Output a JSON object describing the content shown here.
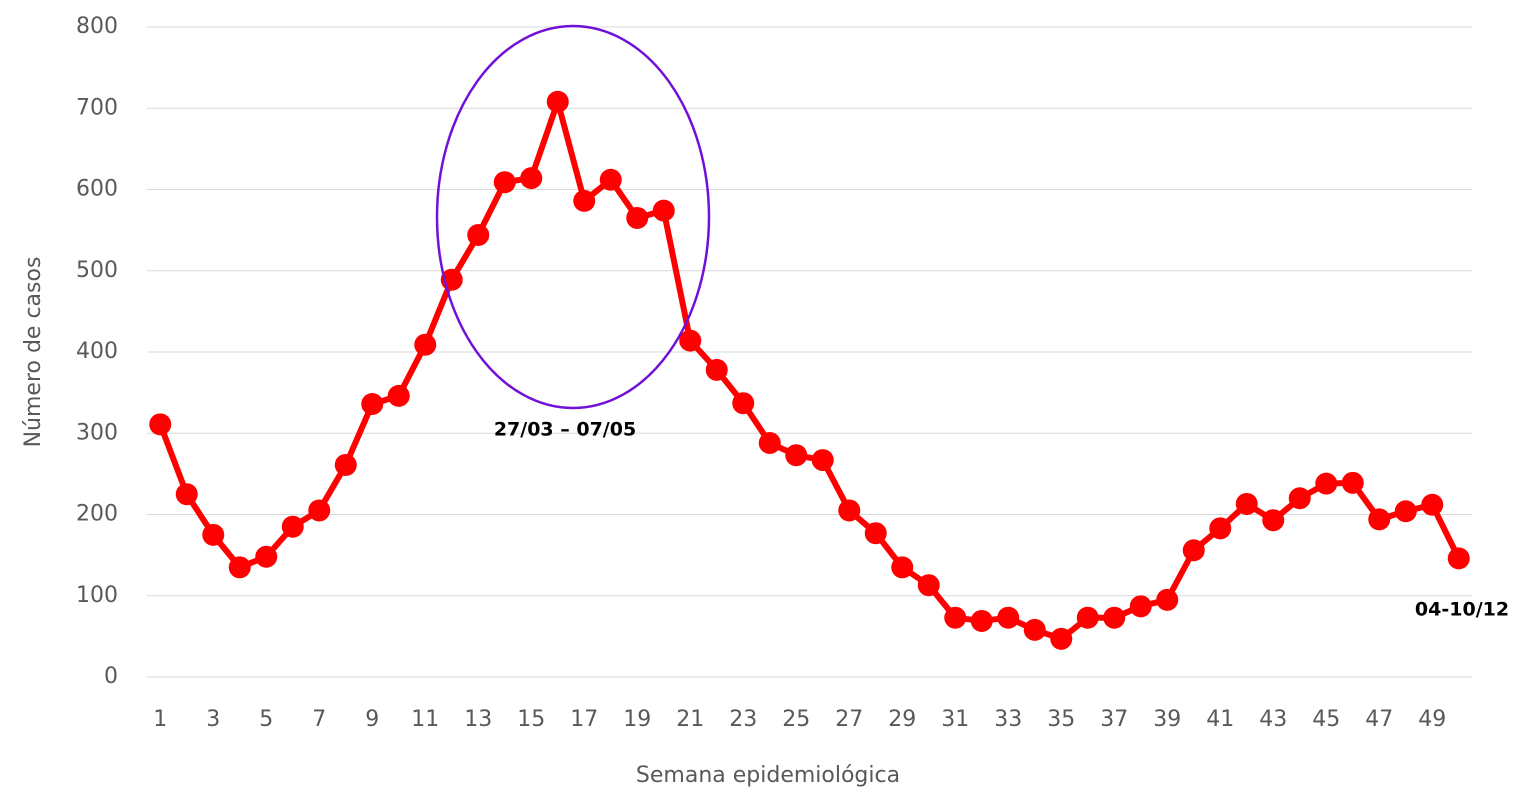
{
  "chart_data": {
    "type": "line",
    "x_label": "Semana epidemiológica",
    "y_label": "Número de casos",
    "x": [
      1,
      2,
      3,
      4,
      5,
      6,
      7,
      8,
      9,
      10,
      11,
      12,
      13,
      14,
      15,
      16,
      17,
      18,
      19,
      20,
      21,
      22,
      23,
      24,
      25,
      26,
      27,
      28,
      29,
      30,
      31,
      32,
      33,
      34,
      35,
      36,
      37,
      38,
      39,
      40,
      41,
      42,
      43,
      44,
      45,
      46,
      47,
      48,
      49,
      50
    ],
    "series": [
      {
        "color": "#ff0000",
        "values": [
          311,
          225,
          175,
          135,
          148,
          185,
          205,
          261,
          336,
          346,
          409,
          489,
          544,
          609,
          614,
          708,
          586,
          612,
          565,
          574,
          414,
          378,
          337,
          288,
          273,
          267,
          205,
          177,
          135,
          113,
          73,
          69,
          73,
          58,
          47,
          73,
          73,
          87,
          95,
          156,
          183,
          213,
          193,
          220,
          238,
          239,
          194,
          204,
          212,
          146
        ]
      }
    ],
    "xlim": [
      0.5,
      50.5
    ],
    "xticks": [
      1,
      3,
      5,
      7,
      9,
      11,
      13,
      15,
      17,
      19,
      21,
      23,
      25,
      27,
      29,
      31,
      33,
      35,
      37,
      39,
      41,
      43,
      45,
      47,
      49
    ],
    "ylim": [
      0,
      800
    ],
    "yticks": [
      0,
      100,
      200,
      300,
      400,
      500,
      600,
      700,
      800
    ],
    "grid": true,
    "annotations": [
      "27/03 – 07/05",
      "04-10/12"
    ]
  }
}
